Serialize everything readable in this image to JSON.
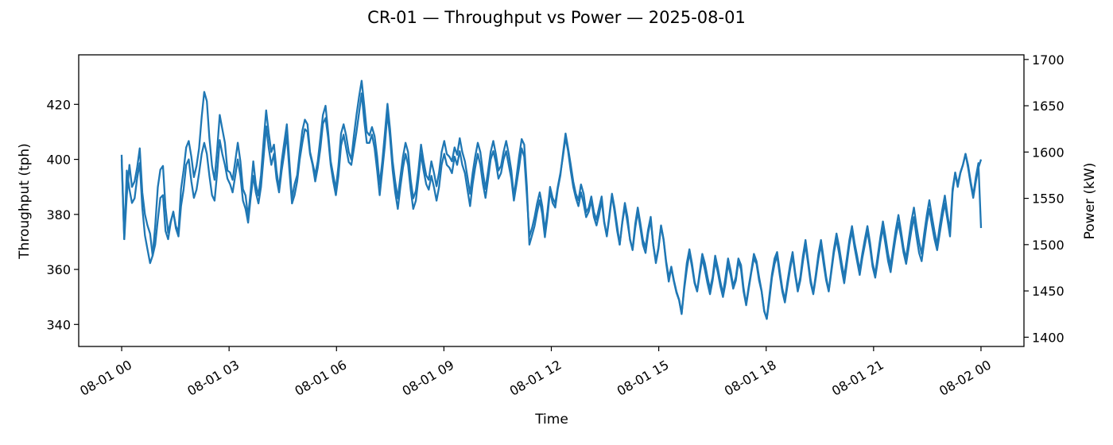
{
  "chart_data": {
    "type": "line",
    "title": "CR-01 — Throughput vs Power — 2025-08-01",
    "xlabel": "Time",
    "ylabel_left": "Throughput (tph)",
    "ylabel_right": "Power (kW)",
    "x_ticks": [
      "08-01 00",
      "08-01 03",
      "08-01 06",
      "08-01 09",
      "08-01 12",
      "08-01 15",
      "08-01 18",
      "08-01 21",
      "08-02 00"
    ],
    "y_left_ticks": [
      340,
      360,
      380,
      400,
      420
    ],
    "y_right_ticks": [
      1400,
      1450,
      1500,
      1550,
      1600,
      1650,
      1700
    ],
    "ylim_left": [
      332,
      438
    ],
    "ylim_right": [
      1390,
      1705
    ],
    "xlim_hours": [
      -1.2,
      25.2
    ],
    "grid": false,
    "color": "#1f77b4",
    "sample_interval_minutes": 5,
    "series": [
      {
        "axis": "left",
        "values": [
          400,
          371,
          387,
          398,
          390,
          392,
          397,
          404,
          388,
          380,
          376,
          373,
          365,
          369,
          378,
          386,
          387,
          374,
          371,
          377,
          381,
          375,
          372,
          383,
          389,
          398,
          400,
          392,
          386,
          389,
          395,
          402,
          406,
          402,
          394,
          387,
          385,
          395,
          407,
          402,
          398,
          393,
          391,
          388,
          394,
          400,
          394,
          385,
          382,
          377,
          386,
          394,
          388,
          384,
          390,
          401,
          412,
          404,
          398,
          402,
          393,
          388,
          396,
          402,
          409,
          396,
          384,
          387,
          392,
          400,
          406,
          411,
          410,
          402,
          398,
          392,
          397,
          404,
          413,
          415,
          408,
          398,
          392,
          387,
          394,
          405,
          409,
          404,
          399,
          398,
          404,
          410,
          417,
          424,
          414,
          406,
          406,
          409,
          404,
          396,
          387,
          396,
          405,
          417,
          408,
          396,
          388,
          382,
          390,
          397,
          402,
          398,
          389,
          382,
          385,
          393,
          402,
          396,
          391,
          389,
          394,
          390,
          385,
          390,
          398,
          402,
          398,
          397,
          395,
          401,
          398,
          403,
          398,
          395,
          389,
          383,
          391,
          397,
          402,
          398,
          391,
          386,
          393,
          400,
          403,
          399,
          393,
          395,
          400,
          403,
          398,
          393,
          385,
          391,
          397,
          404,
          401,
          387,
          372,
          375,
          379,
          384,
          388,
          383,
          374,
          381,
          390,
          386,
          384,
          390,
          395,
          401,
          408,
          403,
          396,
          390,
          386,
          383,
          388,
          384,
          379,
          381,
          385,
          379,
          376,
          380,
          385,
          377,
          372,
          379,
          387,
          381,
          374,
          369,
          377,
          383,
          377,
          371,
          367,
          375,
          381,
          375,
          369,
          366,
          373,
          378,
          369,
          363,
          368,
          376,
          371,
          363,
          357,
          361,
          356,
          352,
          349,
          344,
          353,
          360,
          366,
          361,
          355,
          352,
          358,
          364,
          360,
          355,
          351,
          356,
          363,
          359,
          354,
          350,
          355,
          362,
          358,
          353,
          356,
          363,
          360,
          352,
          347,
          353,
          359,
          364,
          362,
          356,
          352,
          345,
          342,
          349,
          357,
          362,
          365,
          358,
          352,
          348,
          354,
          360,
          365,
          358,
          352,
          356,
          363,
          369,
          362,
          355,
          351,
          357,
          364,
          369,
          362,
          356,
          352,
          359,
          366,
          371,
          366,
          360,
          355,
          362,
          369,
          374,
          368,
          363,
          358,
          364,
          369,
          374,
          368,
          361,
          357,
          363,
          370,
          375,
          369,
          363,
          359,
          366,
          372,
          377,
          372,
          366,
          362,
          368,
          374,
          379,
          372,
          366,
          363,
          370,
          377,
          382,
          376,
          371,
          367,
          373,
          379,
          384,
          378,
          372,
          388,
          395,
          390,
          395,
          398,
          402,
          397,
          391,
          386,
          392,
          397,
          400
        ],
        "values_note": ""
      },
      {
        "axis": "right",
        "values": [
          1597,
          1506,
          1580,
          1560,
          1545,
          1550,
          1572,
          1588,
          1540,
          1510,
          1495,
          1480,
          1488,
          1520,
          1562,
          1581,
          1585,
          1540,
          1513,
          1525,
          1535,
          1520,
          1514,
          1560,
          1580,
          1605,
          1612,
          1595,
          1573,
          1585,
          1604,
          1638,
          1665,
          1655,
          1615,
          1585,
          1570,
          1602,
          1640,
          1625,
          1610,
          1580,
          1578,
          1570,
          1590,
          1610,
          1590,
          1560,
          1553,
          1530,
          1558,
          1590,
          1565,
          1553,
          1575,
          1612,
          1645,
          1620,
          1600,
          1608,
          1580,
          1560,
          1590,
          1610,
          1630,
          1590,
          1550,
          1565,
          1575,
          1600,
          1623,
          1635,
          1630,
          1600,
          1588,
          1575,
          1590,
          1615,
          1640,
          1650,
          1622,
          1590,
          1575,
          1560,
          1585,
          1620,
          1630,
          1618,
          1600,
          1592,
          1618,
          1640,
          1660,
          1677,
          1650,
          1622,
          1618,
          1627,
          1617,
          1595,
          1565,
          1590,
          1620,
          1652,
          1625,
          1590,
          1568,
          1550,
          1573,
          1595,
          1610,
          1600,
          1570,
          1550,
          1558,
          1580,
          1608,
          1590,
          1575,
          1570,
          1590,
          1578,
          1563,
          1578,
          1600,
          1612,
          1598,
          1595,
          1590,
          1605,
          1597,
          1615,
          1600,
          1590,
          1573,
          1555,
          1577,
          1595,
          1610,
          1600,
          1578,
          1560,
          1580,
          1600,
          1612,
          1598,
          1580,
          1585,
          1600,
          1612,
          1598,
          1580,
          1552,
          1573,
          1595,
          1614,
          1608,
          1563,
          1500,
          1510,
          1520,
          1535,
          1548,
          1533,
          1508,
          1530,
          1558,
          1545,
          1540,
          1560,
          1575,
          1598,
          1620,
          1604,
          1587,
          1568,
          1555,
          1548,
          1565,
          1555,
          1535,
          1540,
          1552,
          1535,
          1527,
          1540,
          1552,
          1525,
          1510,
          1532,
          1555,
          1540,
          1520,
          1500,
          1525,
          1545,
          1530,
          1505,
          1495,
          1522,
          1540,
          1523,
          1505,
          1497,
          1516,
          1530,
          1500,
          1480,
          1495,
          1520,
          1505,
          1480,
          1460,
          1475,
          1460,
          1448,
          1440,
          1425,
          1455,
          1480,
          1495,
          1480,
          1460,
          1450,
          1470,
          1490,
          1480,
          1465,
          1452,
          1465,
          1488,
          1475,
          1460,
          1447,
          1465,
          1485,
          1472,
          1455,
          1465,
          1485,
          1478,
          1453,
          1436,
          1455,
          1472,
          1490,
          1482,
          1465,
          1450,
          1428,
          1420,
          1445,
          1468,
          1485,
          1492,
          1472,
          1453,
          1440,
          1460,
          1478,
          1492,
          1470,
          1452,
          1465,
          1488,
          1505,
          1483,
          1462,
          1448,
          1468,
          1490,
          1505,
          1485,
          1465,
          1450,
          1473,
          1495,
          1512,
          1498,
          1480,
          1465,
          1485,
          1505,
          1520,
          1502,
          1488,
          1472,
          1490,
          1506,
          1520,
          1502,
          1480,
          1468,
          1488,
          1508,
          1525,
          1508,
          1490,
          1477,
          1497,
          1516,
          1532,
          1515,
          1496,
          1485,
          1506,
          1525,
          1540,
          1520,
          1503,
          1490,
          1512,
          1532,
          1548,
          1530,
          1514,
          1500,
          1520,
          1538,
          1553,
          1532,
          1515,
          1560,
          1578,
          1565,
          1578,
          1586,
          1598,
          1586,
          1568,
          1553,
          1573,
          1588,
          1518
        ]
      }
    ]
  }
}
